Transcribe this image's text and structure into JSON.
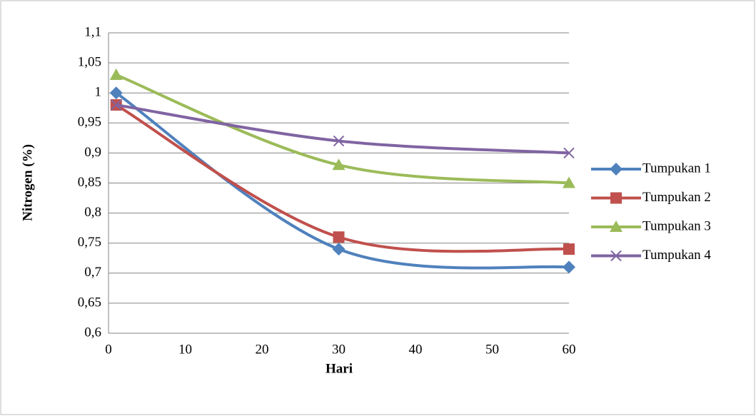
{
  "chart_data": {
    "type": "line",
    "smooth": true,
    "x_label": "Hari",
    "y_label": "Nitrogen (%)",
    "x": [
      1,
      30,
      60
    ],
    "series": [
      {
        "name": "Tumpukan 1",
        "color": "#4f81bd",
        "marker": "diamond",
        "values": [
          1.0,
          0.74,
          0.71
        ]
      },
      {
        "name": "Tumpukan 2",
        "color": "#c0504d",
        "marker": "square",
        "values": [
          0.98,
          0.76,
          0.74
        ]
      },
      {
        "name": "Tumpukan 3",
        "color": "#9bbb59",
        "marker": "triangle",
        "values": [
          1.03,
          0.88,
          0.85
        ]
      },
      {
        "name": "Tumpukan 4",
        "color": "#8064a2",
        "marker": "x",
        "values": [
          0.98,
          0.92,
          0.9
        ]
      }
    ],
    "xlim": [
      0,
      60
    ],
    "xticks": [
      0,
      10,
      20,
      30,
      40,
      50,
      60
    ],
    "ylim": [
      0.6,
      1.1
    ],
    "yticks": [
      {
        "value": 0.6,
        "label": "0,6"
      },
      {
        "value": 0.65,
        "label": "0,65"
      },
      {
        "value": 0.7,
        "label": "0,7"
      },
      {
        "value": 0.75,
        "label": "0,75"
      },
      {
        "value": 0.8,
        "label": "0,8"
      },
      {
        "value": 0.85,
        "label": "0,85"
      },
      {
        "value": 0.9,
        "label": "0,9"
      },
      {
        "value": 0.95,
        "label": "0,95"
      },
      1,
      {
        "value": 1.05,
        "label": "1,05"
      },
      {
        "value": 1.1,
        "label": "1,1"
      }
    ],
    "grid": true,
    "legend": "right"
  }
}
